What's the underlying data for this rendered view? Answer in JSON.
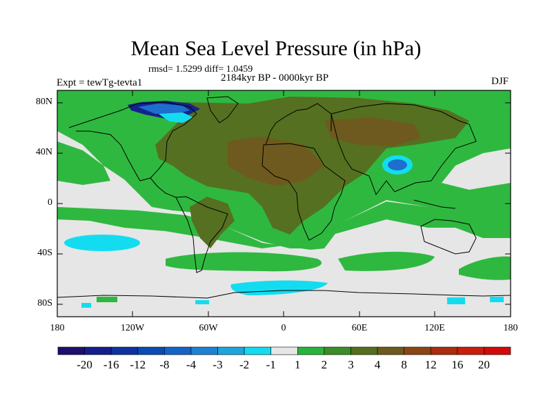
{
  "title": "Mean Sea Level Pressure (in hPa)",
  "stats": "rmsd= 1.5299  diff= 1.0459",
  "experiment": "Expt = tewTg-tevta1",
  "period": "2184kyr BP - 0000kyr BP",
  "season": "DJF",
  "y_ticks": [
    "80N",
    "40N",
    "0",
    "40S",
    "80S"
  ],
  "x_ticks": [
    "180",
    "120W",
    "60W",
    "0",
    "60E",
    "120E",
    "180"
  ],
  "colorbar": {
    "labels": [
      "-20",
      "-16",
      "-12",
      "-8",
      "-4",
      "-3",
      "-2",
      "-1",
      "1",
      "2",
      "3",
      "4",
      "8",
      "12",
      "16",
      "20"
    ],
    "colors": [
      "#1e0f6e",
      "#141e8c",
      "#0f32a0",
      "#0a4bb4",
      "#1464c8",
      "#1e82d2",
      "#1ea5dc",
      "#14dcf0",
      "#e6e6e6",
      "#28b43c",
      "#3c8c28",
      "#556e1e",
      "#6e5a1e",
      "#8c4614",
      "#aa2d0f",
      "#c81e0a",
      "#d20a0a"
    ]
  },
  "map_colors": {
    "neutral": "#e6e6e6",
    "green": "#2fb83f",
    "olive": "#557020",
    "brown": "#6e5a1e",
    "cyan": "#14dcf0",
    "blue": "#1e6ecd",
    "darkblue": "#14238c"
  }
}
